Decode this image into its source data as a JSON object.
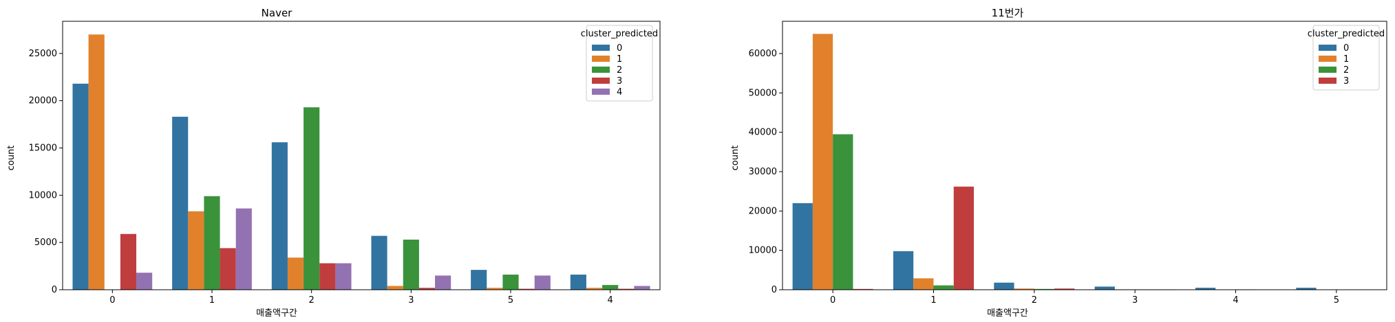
{
  "chart_data": [
    {
      "type": "bar",
      "title": "Naver",
      "xlabel": "매출액구간",
      "ylabel": "count",
      "categories": [
        "0",
        "1",
        "2",
        "3",
        "5",
        "4"
      ],
      "ylim": [
        0,
        28400
      ],
      "yticks": [
        0,
        5000,
        10000,
        15000,
        20000,
        25000
      ],
      "legend": {
        "title": "cluster_predicted",
        "placement": "top-right"
      },
      "series": [
        {
          "name": "0",
          "color": "#3274a1",
          "values": [
            21800,
            18300,
            15600,
            5700,
            2100,
            1600
          ]
        },
        {
          "name": "1",
          "color": "#e1812c",
          "values": [
            27000,
            8300,
            3400,
            400,
            200,
            200
          ]
        },
        {
          "name": "2",
          "color": "#3a923a",
          "values": [
            0,
            9900,
            19300,
            5300,
            1600,
            500
          ]
        },
        {
          "name": "3",
          "color": "#c03d3e",
          "values": [
            5900,
            4400,
            2800,
            200,
            100,
            100
          ]
        },
        {
          "name": "4",
          "color": "#9372b2",
          "values": [
            1800,
            8600,
            2800,
            1500,
            1500,
            400
          ]
        }
      ],
      "grid": false
    },
    {
      "type": "bar",
      "title": "11번가",
      "xlabel": "매출액구간",
      "ylabel": "count",
      "categories": [
        "0",
        "1",
        "2",
        "3",
        "4",
        "5"
      ],
      "ylim": [
        0,
        68200
      ],
      "yticks": [
        0,
        10000,
        20000,
        30000,
        40000,
        50000,
        60000
      ],
      "legend": {
        "title": "cluster_predicted",
        "placement": "top-right"
      },
      "series": [
        {
          "name": "0",
          "color": "#3274a1",
          "values": [
            22000,
            9800,
            1800,
            800,
            500,
            500
          ]
        },
        {
          "name": "1",
          "color": "#e1812c",
          "values": [
            65000,
            2900,
            300,
            100,
            0,
            0
          ]
        },
        {
          "name": "2",
          "color": "#3a923a",
          "values": [
            39500,
            1100,
            200,
            100,
            100,
            0
          ]
        },
        {
          "name": "3",
          "color": "#c03d3e",
          "values": [
            200,
            26200,
            300,
            100,
            0,
            0
          ]
        }
      ],
      "grid": false
    }
  ]
}
